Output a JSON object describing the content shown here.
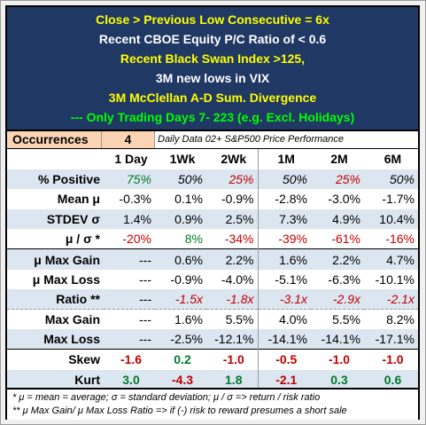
{
  "header": {
    "lines": [
      {
        "text": "Close > Previous Low Consecutive = 6x",
        "color": "#ffff00"
      },
      {
        "text": "Recent CBOE Equity P/C Ratio of < 0.6",
        "color": "#ffffff"
      },
      {
        "text": "Recent Black Swan Index >125,",
        "color": "#ffff00"
      },
      {
        "text": "3M new lows in VIX",
        "color": "#ffffff"
      },
      {
        "text": "3M McClellan A-D Sum. Divergence",
        "color": "#ffff00"
      },
      {
        "text": "--- Only Trading Days 7- 223 (e.g.  Excl. Holidays)",
        "color": "#00ff00"
      }
    ]
  },
  "occurrences": {
    "label": "Occurrences",
    "count": "4",
    "note": "Daily Data 02+  S&P500 Price Performance"
  },
  "table": {
    "columns": [
      "1 Day",
      "1Wk",
      "2Wk",
      "1M",
      "2M",
      "6M"
    ],
    "rows": [
      {
        "label": "% Positive",
        "values": [
          "75%",
          "50%",
          "25%",
          "50%",
          "25%",
          "50%"
        ],
        "colors": [
          "pos",
          "blk",
          "neg",
          "blk",
          "neg",
          "blk"
        ],
        "italic": true
      },
      {
        "label": "Mean μ",
        "values": [
          "-0.3%",
          "0.1%",
          "-0.9%",
          "-2.8%",
          "-3.0%",
          "-1.7%"
        ]
      },
      {
        "label": "STDEV σ",
        "values": [
          "1.4%",
          "0.9%",
          "2.5%",
          "7.3%",
          "4.9%",
          "10.4%"
        ]
      },
      {
        "label": "μ  / σ *",
        "values": [
          "-20%",
          "8%",
          "-34%",
          "-39%",
          "-61%",
          "-16%"
        ],
        "colors": [
          "neg",
          "pos",
          "neg",
          "neg",
          "neg",
          "neg"
        ]
      },
      {
        "label": "μ Max Gain",
        "values": [
          "---",
          "0.6%",
          "2.2%",
          "1.6%",
          "2.2%",
          "4.7%"
        ]
      },
      {
        "label": "μ Max Loss",
        "values": [
          "---",
          "-0.9%",
          "-4.0%",
          "-5.1%",
          "-6.3%",
          "-10.1%"
        ]
      },
      {
        "label": "Ratio **",
        "values": [
          "---",
          "-1.5x",
          "-1.8x",
          "-3.1x",
          "-2.9x",
          "-2.1x"
        ],
        "colors": [
          "blk",
          "neg",
          "neg",
          "neg",
          "neg",
          "neg"
        ],
        "italic": true
      },
      {
        "label": "Max Gain",
        "values": [
          "---",
          "1.6%",
          "5.5%",
          "4.0%",
          "5.5%",
          "8.2%"
        ]
      },
      {
        "label": "Max Loss",
        "values": [
          "---",
          "-2.5%",
          "-12.1%",
          "-14.1%",
          "-14.1%",
          "-17.1%"
        ]
      },
      {
        "label": "Skew",
        "values": [
          "-1.6",
          "0.2",
          "-1.0",
          "-0.5",
          "-1.0",
          "-1.0"
        ],
        "colors": [
          "neg",
          "pos",
          "neg",
          "neg",
          "neg",
          "neg"
        ],
        "center": true
      },
      {
        "label": "Kurt",
        "values": [
          "3.0",
          "-4.3",
          "1.8",
          "-2.1",
          "0.3",
          "0.6"
        ],
        "colors": [
          "pos",
          "neg",
          "pos",
          "neg",
          "pos",
          "pos"
        ],
        "center": true
      }
    ]
  },
  "footnotes": [
    "* μ = mean = average;   σ = standard deviation;    μ / σ  => return / risk ratio",
    "** μ Max Gain/ μ Max Loss Ratio => if (-) risk to reward presumes a short sale"
  ]
}
